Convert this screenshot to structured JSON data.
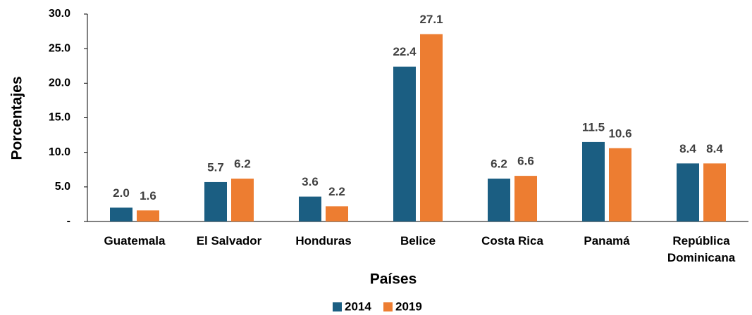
{
  "chart_data": {
    "type": "bar",
    "x_label": "Países",
    "y_label": "Porcentajes",
    "categories": [
      "Guatemala",
      "El Salvador",
      "Honduras",
      "Belice",
      "Costa Rica",
      "Panamá",
      "República Dominicana"
    ],
    "series": [
      {
        "name": "2014",
        "color": "#1b5e82",
        "values": [
          2.0,
          5.7,
          3.6,
          22.4,
          6.2,
          11.5,
          8.4
        ],
        "value_labels": [
          "2.0",
          "5.7",
          "3.6",
          "22.4",
          "6.2",
          "11.5",
          "8.4"
        ]
      },
      {
        "name": "2019",
        "color": "#ed7d31",
        "values": [
          1.6,
          6.2,
          2.2,
          27.1,
          6.6,
          10.6,
          8.4
        ],
        "value_labels": [
          "1.6",
          "6.2",
          "2.2",
          "27.1",
          "6.6",
          "10.6",
          "8.4"
        ]
      }
    ],
    "ylim": [
      0,
      30
    ],
    "yticks": [
      {
        "value": 0,
        "label": "-"
      },
      {
        "value": 5,
        "label": "5.0"
      },
      {
        "value": 10,
        "label": "10.0"
      },
      {
        "value": 15,
        "label": "15.0"
      },
      {
        "value": 20,
        "label": "20.0"
      },
      {
        "value": 25,
        "label": "25.0"
      },
      {
        "value": 30,
        "label": "30.0"
      }
    ],
    "grid": false,
    "legend": "bottom"
  }
}
